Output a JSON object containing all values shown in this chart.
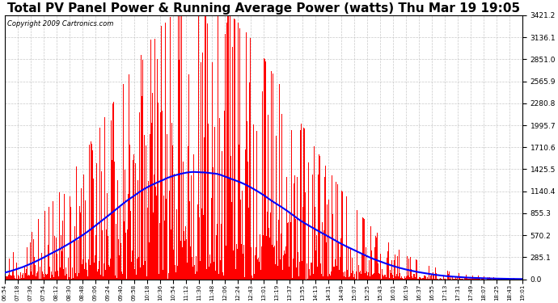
{
  "title": "Total PV Panel Power & Running Average Power (watts) Thu Mar 19 19:05",
  "copyright": "Copyright 2009 Cartronics.com",
  "ymax": 3421.2,
  "ymin": 0.0,
  "yticks": [
    0.0,
    285.1,
    570.2,
    855.3,
    1140.4,
    1425.5,
    1710.6,
    1995.7,
    2280.8,
    2565.9,
    2851.0,
    3136.1,
    3421.2
  ],
  "xtick_labels": [
    "06:54",
    "07:18",
    "07:36",
    "07:54",
    "08:12",
    "08:30",
    "08:48",
    "09:06",
    "09:24",
    "09:40",
    "09:58",
    "10:18",
    "10:36",
    "10:54",
    "11:12",
    "11:30",
    "11:48",
    "12:06",
    "12:24",
    "12:43",
    "13:01",
    "13:19",
    "13:37",
    "13:55",
    "14:13",
    "14:31",
    "14:49",
    "15:07",
    "15:25",
    "15:43",
    "16:01",
    "16:19",
    "16:37",
    "16:55",
    "17:13",
    "17:31",
    "17:49",
    "18:07",
    "18:25",
    "18:43",
    "19:01"
  ],
  "bar_color": "#FF0000",
  "line_color": "#0000FF",
  "background_color": "#FFFFFF",
  "grid_color": "#BBBBBB",
  "title_fontsize": 11,
  "copyright_fontsize": 6,
  "figwidth": 6.9,
  "figheight": 3.75,
  "dpi": 100
}
